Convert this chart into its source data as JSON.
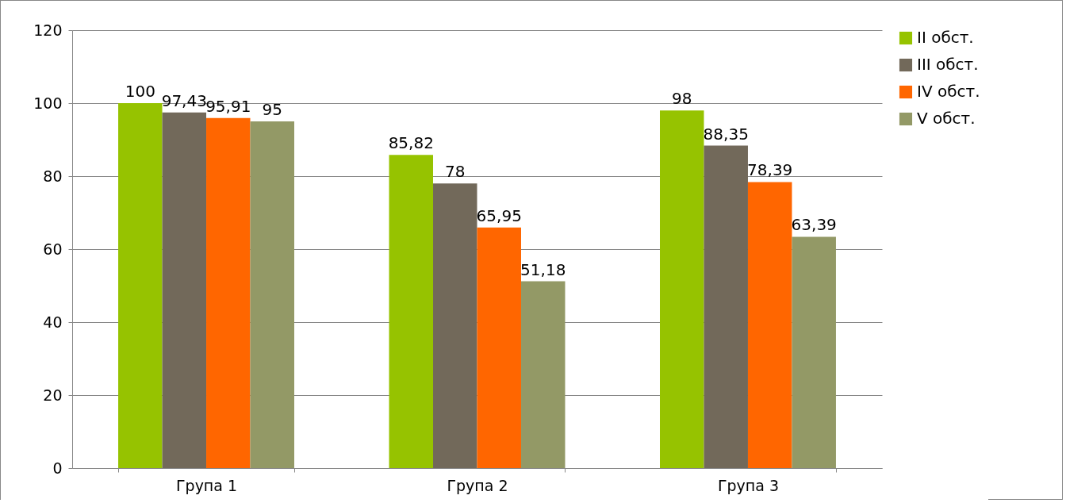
{
  "chart_data": {
    "type": "bar",
    "categories": [
      "Група 1",
      "Група 2",
      "Група 3"
    ],
    "series": [
      {
        "name": "II обст.",
        "color": "#96c300",
        "values": [
          100,
          85.82,
          98
        ],
        "value_labels": [
          "100",
          "85,82",
          "98"
        ]
      },
      {
        "name": "III обст.",
        "color": "#72695a",
        "values": [
          97.43,
          78,
          88.35
        ],
        "value_labels": [
          "97,43",
          "78",
          "88,35"
        ]
      },
      {
        "name": "IV обст.",
        "color": "#ff6600",
        "values": [
          95.91,
          65.95,
          78.39
        ],
        "value_labels": [
          "95,91",
          "65,95",
          "78,39"
        ]
      },
      {
        "name": "V обст.",
        "color": "#939966",
        "values": [
          95,
          51.18,
          63.39
        ],
        "value_labels": [
          "95",
          "51,18",
          "63,39"
        ]
      }
    ],
    "ylim": [
      0,
      120
    ],
    "yticks": [
      0,
      20,
      40,
      60,
      80,
      100,
      120
    ],
    "grid": "y",
    "legend": "right"
  }
}
